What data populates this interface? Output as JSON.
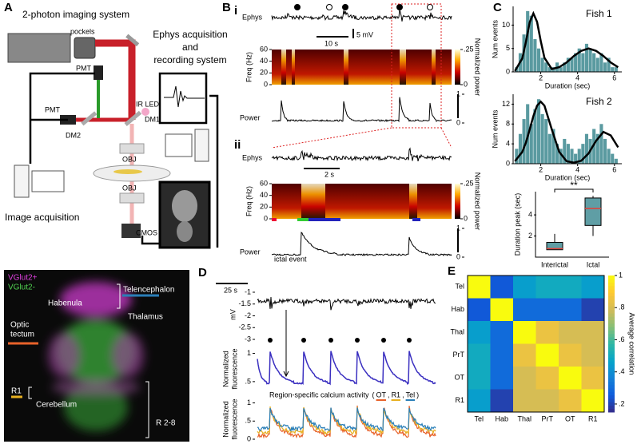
{
  "panels": {
    "a": "A",
    "b": "B",
    "c": "C",
    "d": "D",
    "e": "E"
  },
  "setup": {
    "two_photon": "2-photon imaging system",
    "pockels": "pockels",
    "ephys_line1": "Ephys acquisition",
    "ephys_line2": "and",
    "ephys_line3": "recording system",
    "pmt1": "PMT",
    "pmt2": "PMT",
    "ir_led": "IR LED",
    "dm1": "DM1",
    "dm2": "DM2",
    "obj1": "OBJ",
    "obj2": "OBJ",
    "cmos": "CMOS",
    "image_acquisition": "Image acquisition"
  },
  "brain": {
    "vglut_pos": "VGlut2+",
    "vglut_neg": "VGlut2-",
    "habenula": "Habenula",
    "telencephalon": "Telencephalon",
    "thalamus": "Thalamus",
    "optic1": "Optic",
    "optic2": "tectum",
    "r1": "R1",
    "cerebellum": "Cerebellum",
    "r2_8": "R 2-8"
  },
  "ephys": {
    "i": {
      "label": "i",
      "ephys_label": "Ephys",
      "scale_v": "5 mV",
      "scale_t": "10 s",
      "freq_label": "Freq (Hz)",
      "freq_ylim": [
        0,
        60
      ],
      "freq_yticks": [
        0,
        20,
        40,
        60
      ],
      "cbar_lim": [
        0,
        0.25
      ],
      "cbar_ticks": [
        0,
        {
          "value": 0.25,
          "label": ".25"
        }
      ],
      "cbar_label": "Normalized power",
      "power_label": "Power",
      "power_ylim": [
        0,
        1
      ],
      "power_ticks": [
        0,
        1
      ]
    },
    "ii": {
      "label": "ii",
      "ephys_label": "Ephys",
      "scale_t": "2 s",
      "freq_label": "Freq (Hz)",
      "freq_ylim": [
        0,
        60
      ],
      "freq_yticks": [
        0,
        20,
        40,
        60
      ],
      "cbar_lim": [
        0,
        0.25
      ],
      "cbar_ticks": [
        0,
        {
          "value": 0.25,
          "label": ".25"
        }
      ],
      "cbar_label": "Normalized power",
      "power_label": "Power",
      "power_ylim": [
        0,
        1
      ],
      "power_ticks": [
        0,
        1
      ],
      "ictal_event": "ictal event"
    }
  },
  "calcium": {
    "scale_t": "25 s",
    "mv_label": "mV",
    "mv_ylim": [
      -3,
      -0.9
    ],
    "mv_ticks": [
      -1,
      -1.5,
      -2,
      -2.5,
      -3
    ],
    "nf_label1": "Normalized",
    "nf_label2": "fluorescence",
    "nf_ylim": [
      0.3,
      1.15
    ],
    "nf_ticks": [
      {
        "value": 0.5,
        "label": ".5"
      },
      1
    ],
    "nf_color": "#3a2fc0",
    "region_ylim": [
      0,
      1.1
    ],
    "region_ticks": [
      0,
      {
        "value": 0.5,
        "label": ".5"
      },
      1
    ],
    "legend_title": "Region-specific calcium activity",
    "legend_open": "(",
    "legend_sep": ",",
    "legend_close": ")",
    "series": [
      {
        "name": "OT",
        "color": "#e8622a"
      },
      {
        "name": "R1",
        "color": "#e8b020"
      },
      {
        "name": "Tel",
        "color": "#2a7fb8"
      }
    ]
  },
  "chart_data": [
    {
      "type": "histogram",
      "title": "Fish 1",
      "xlabel": "Duration (sec)",
      "ylabel": "Num events",
      "color": "#5a9aa0",
      "bins": [
        0.6,
        0.8,
        1.0,
        1.2,
        1.4,
        1.6,
        1.8,
        2.0,
        2.2,
        2.4,
        2.6,
        2.8,
        3.0,
        3.2,
        3.4,
        3.6,
        3.8,
        4.0,
        4.2,
        4.4,
        4.6,
        4.8,
        5.0,
        5.2,
        5.4,
        5.6,
        5.8,
        6.0,
        6.2
      ],
      "values": [
        1,
        4,
        8,
        13,
        12,
        7,
        5,
        3,
        2,
        1,
        1,
        2,
        1,
        2,
        3,
        3,
        4,
        5,
        4,
        6,
        5,
        4,
        3,
        4,
        2,
        3,
        1,
        1
      ],
      "fit_x": [
        0.6,
        1.0,
        1.2,
        1.4,
        1.6,
        1.8,
        2.0,
        2.2,
        2.6,
        3.0,
        3.4,
        3.8,
        4.2,
        4.6,
        5.0,
        5.4,
        5.8,
        6.2
      ],
      "fit": [
        0.2,
        2.9,
        6.5,
        10.6,
        12.5,
        10.7,
        6.6,
        3.0,
        0.6,
        1.0,
        2.0,
        3.4,
        4.5,
        5.0,
        4.5,
        3.4,
        2.0,
        1.0
      ],
      "xlim": [
        0.5,
        6.4
      ],
      "ylim": [
        0,
        14
      ],
      "xticks": [
        2,
        4,
        6
      ],
      "yticks": [
        0,
        5,
        10
      ]
    },
    {
      "type": "histogram",
      "title": "Fish 2",
      "xlabel": "Duration (sec)",
      "ylabel": "Num events",
      "color": "#5a9aa0",
      "bins": [
        0.6,
        0.8,
        1.0,
        1.2,
        1.4,
        1.6,
        1.8,
        2.0,
        2.2,
        2.4,
        2.6,
        2.8,
        3.0,
        3.2,
        3.4,
        3.6,
        3.8,
        4.0,
        4.2,
        4.4,
        4.6,
        4.8,
        5.0,
        5.2,
        5.4,
        5.6,
        5.8,
        6.0,
        6.2
      ],
      "values": [
        3,
        6,
        9,
        12,
        8,
        11,
        13,
        10,
        9,
        6,
        7,
        4,
        3,
        5,
        4,
        3,
        2,
        3,
        4,
        6,
        5,
        7,
        6,
        8,
        5,
        3,
        2,
        1
      ],
      "fit_x": [
        0.6,
        1.0,
        1.2,
        1.4,
        1.6,
        1.8,
        2.0,
        2.2,
        2.6,
        3.0,
        3.4,
        3.8,
        4.2,
        4.6,
        5.0,
        5.4,
        5.8,
        6.2
      ],
      "fit": [
        0.5,
        2.4,
        4.3,
        6.9,
        9.6,
        11.7,
        12.5,
        11.7,
        6.9,
        2.4,
        0.5,
        0.2,
        0.6,
        2.1,
        4.6,
        6.4,
        5.7,
        3.3
      ],
      "xlim": [
        0.5,
        6.4
      ],
      "ylim": [
        0,
        14
      ],
      "xticks": [
        2,
        4,
        6
      ],
      "yticks": [
        0,
        4,
        8,
        12
      ]
    },
    {
      "type": "box",
      "ylabel": "Duration peak (sec)",
      "categories": [
        "Interictal",
        "Ictal"
      ],
      "min": [
        0.7,
        2.0
      ],
      "q1": [
        0.7,
        3.0
      ],
      "median": [
        0.8,
        4.6
      ],
      "q3": [
        1.4,
        5.6
      ],
      "max": [
        2.2,
        5.8
      ],
      "ylim": [
        0,
        6.2
      ],
      "yticks": [
        2,
        4
      ],
      "annotation": "**",
      "color": "#5f9ea5",
      "median_color": "#e0413a"
    },
    {
      "type": "heatmap",
      "categories": [
        "Tel",
        "Hab",
        "Thal",
        "PrT",
        "OT",
        "R1"
      ],
      "values": [
        [
          1,
          0.25,
          0.45,
          0.5,
          0.5,
          0.45
        ],
        [
          0.25,
          1,
          0.3,
          0.3,
          0.3,
          0.2
        ],
        [
          0.45,
          0.3,
          1,
          0.85,
          0.8,
          0.8
        ],
        [
          0.5,
          0.3,
          0.85,
          1,
          0.85,
          0.8
        ],
        [
          0.5,
          0.3,
          0.8,
          0.85,
          1,
          0.85
        ],
        [
          0.45,
          0.2,
          0.8,
          0.8,
          0.85,
          1
        ]
      ],
      "clim": [
        0.15,
        1
      ],
      "cticks": [
        {
          "value": 0.2,
          "label": ".2"
        },
        {
          "value": 0.4,
          "label": ".4"
        },
        {
          "value": 0.6,
          "label": ".6"
        },
        {
          "value": 0.8,
          "label": ".8"
        },
        1
      ],
      "clabel": "Average correlation",
      "colormap": [
        "#352a87",
        "#0f5cdd",
        "#1481d6",
        "#06a4ca",
        "#2eb7a4",
        "#87bf77",
        "#d1bb59",
        "#fec832",
        "#f9fb0e"
      ]
    }
  ]
}
